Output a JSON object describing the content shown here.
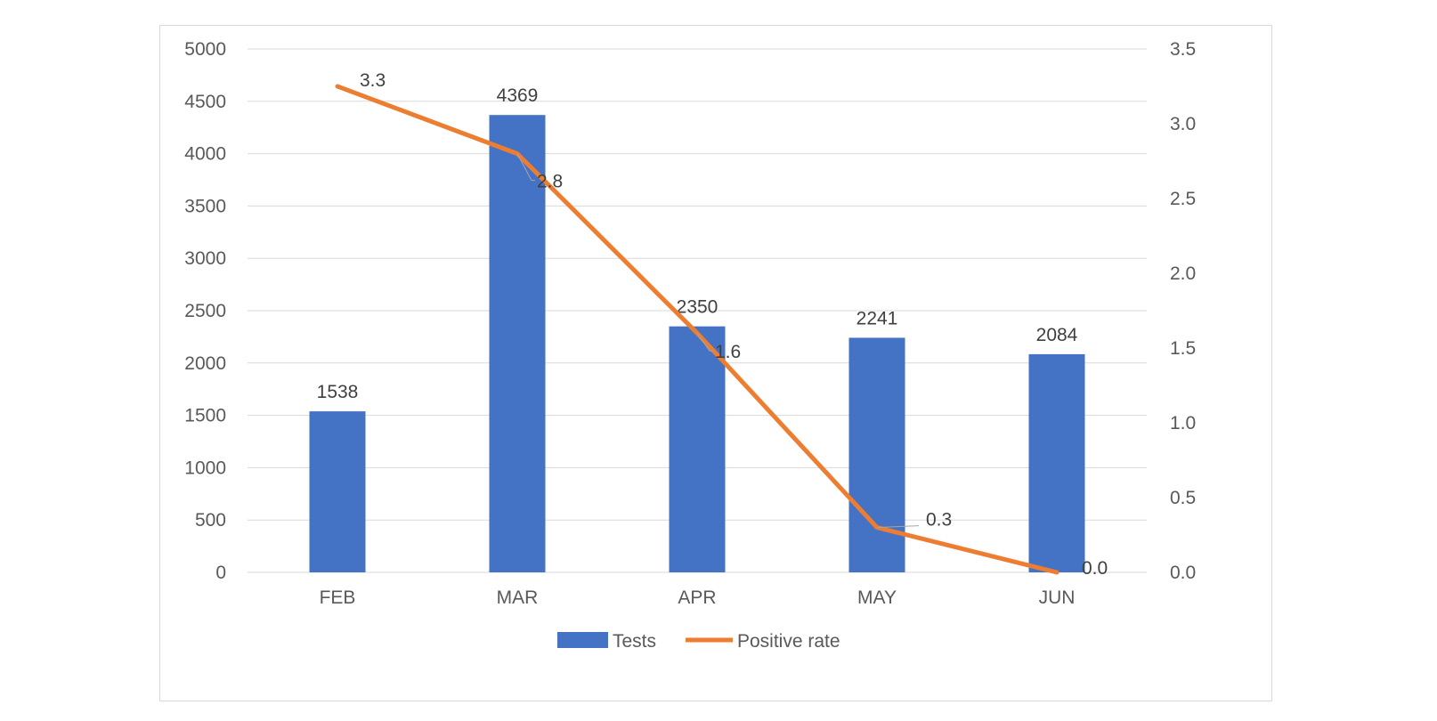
{
  "chart_data": {
    "type": "bar+line",
    "categories": [
      "FEB",
      "MAR",
      "APR",
      "MAY",
      "JUN"
    ],
    "series": [
      {
        "name": "Tests",
        "type": "bar",
        "axis": "left",
        "color": "#4472C4",
        "values": [
          1538,
          4369,
          2350,
          2241,
          2084
        ],
        "labels": [
          "1538",
          "4369",
          "2350",
          "2241",
          "2084"
        ]
      },
      {
        "name": "Positive rate",
        "type": "line",
        "axis": "right",
        "color": "#ED7D31",
        "values": [
          3.25,
          2.8,
          1.6,
          0.3,
          0.0
        ],
        "labels": [
          "3.3",
          "2.8",
          "1.6",
          "0.3",
          "0.0"
        ]
      }
    ],
    "y_left": {
      "min": 0,
      "max": 5000,
      "ticks": [
        "0",
        "500",
        "1000",
        "1500",
        "2000",
        "2500",
        "3000",
        "3500",
        "4000",
        "4500",
        "5000"
      ]
    },
    "y_right": {
      "min": 0,
      "max": 3.5,
      "ticks": [
        "0.0",
        "0.5",
        "1.0",
        "1.5",
        "2.0",
        "2.5",
        "3.0",
        "3.5"
      ]
    },
    "grid": true,
    "gridline_color": "#d9d9d9",
    "legend": {
      "position": "bottom",
      "items": [
        "Tests",
        "Positive rate"
      ]
    }
  }
}
